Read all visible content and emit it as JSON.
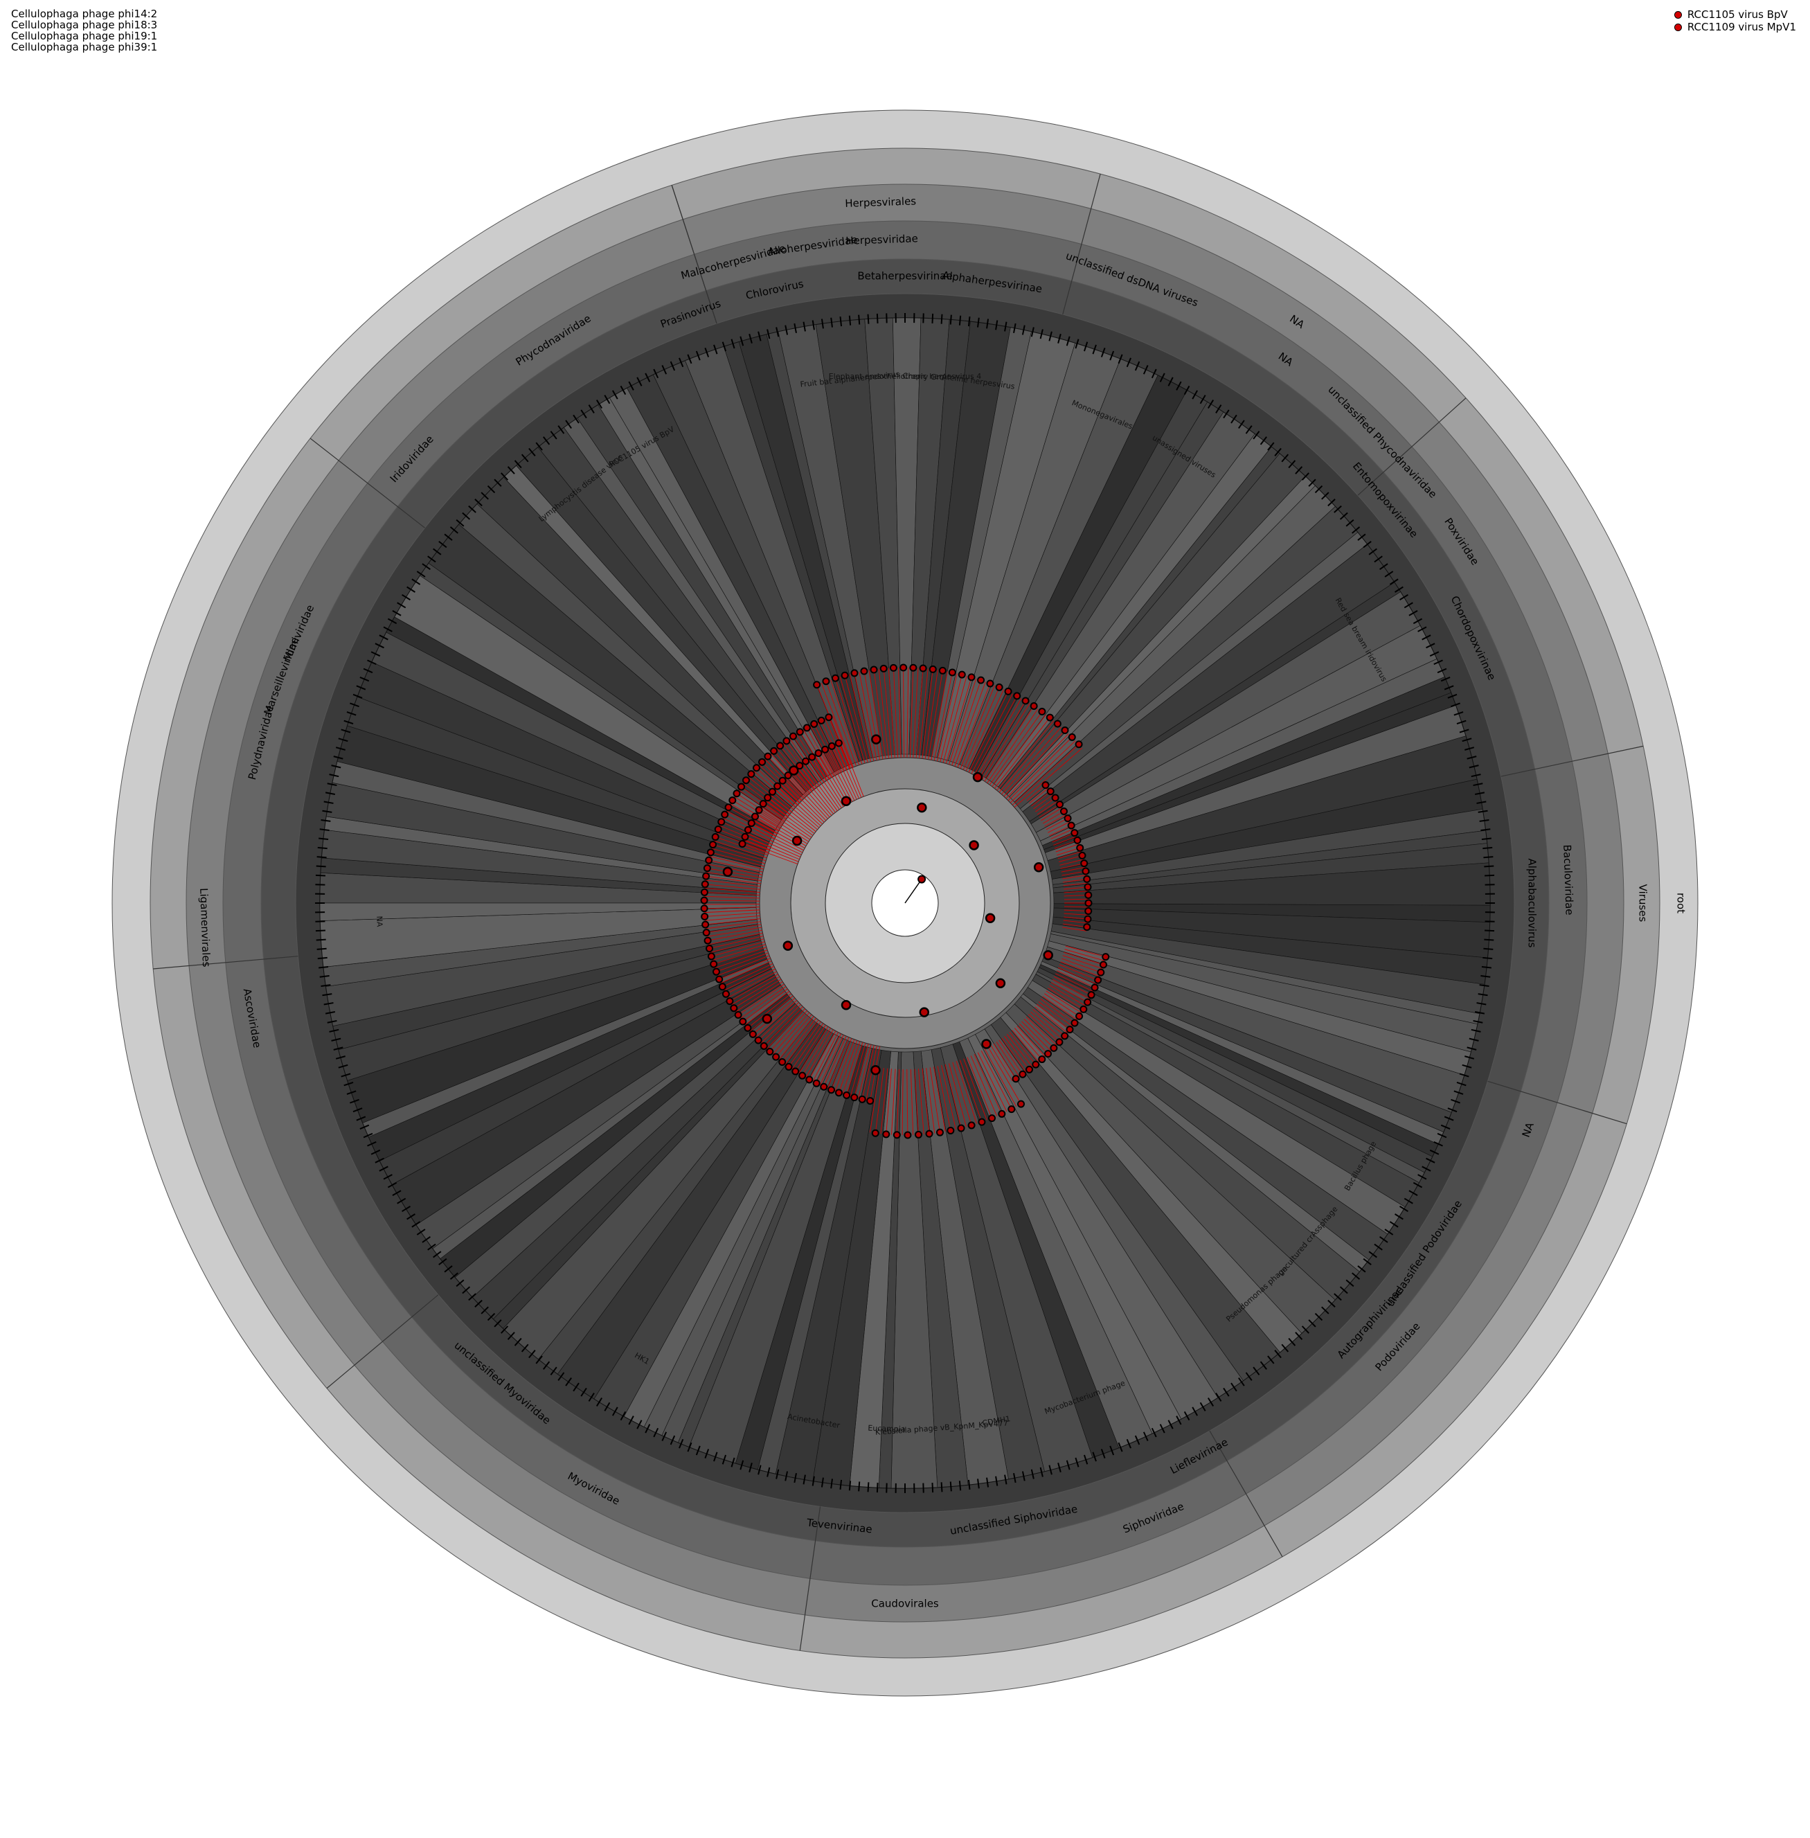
{
  "top_left_labels": [
    "Cellulophaga phage phi14:2",
    "Cellulophaga phage phi18:3",
    "Cellulophaga phage phi19:1",
    "Cellulophaga phage phi39:1"
  ],
  "legend": [
    {
      "label": "RCC1105 virus BpV",
      "color": "#d40000"
    },
    {
      "label": "RCC1109 virus MpV1",
      "color": "#d40000"
    }
  ],
  "colors": {
    "ring_fill_levels": [
      "#cccccc",
      "#a0a0a0",
      "#7f7f7f",
      "#666666",
      "#4d4d4d",
      "#3a3a3a"
    ],
    "edge_color": "#d40000",
    "node_color": "#000000",
    "node_fill": "#b00000"
  },
  "rank_labels": {
    "root": "root",
    "viruses": "Viruses",
    "na_order": "NA",
    "na_family": "NA",
    "na_lower": "NA"
  },
  "orders": [
    {
      "name": "Herpesvirales"
    },
    {
      "name": "NA"
    },
    {
      "name": "Caudovirales"
    },
    {
      "name": "Ligamenvirales"
    }
  ],
  "families": [
    {
      "name": "Herpesviridae"
    },
    {
      "name": "unclassified dsDNA viruses"
    },
    {
      "name": "NA"
    },
    {
      "name": "unclassified Phycodnaviridae"
    },
    {
      "name": "Poxviridae"
    },
    {
      "name": "Baculoviridae"
    },
    {
      "name": "NA"
    },
    {
      "name": "Podoviridae"
    },
    {
      "name": "Siphoviridae"
    },
    {
      "name": "Myoviridae"
    },
    {
      "name": "Ascoviridae"
    },
    {
      "name": "Polydnaviridae"
    },
    {
      "name": "Marseilleviridae"
    },
    {
      "name": "Mimiviridae"
    },
    {
      "name": "Iridoviridae"
    },
    {
      "name": "Phycodnaviridae"
    },
    {
      "name": "Malacoherpesviridae"
    },
    {
      "name": "Alloherpesviridae"
    }
  ],
  "subfamilies": [
    {
      "name": "Alphaherpesvirinae"
    },
    {
      "name": "Betaherpesvirinae"
    },
    {
      "name": "Chordopoxvirinae"
    },
    {
      "name": "Alphabaculovirus"
    },
    {
      "name": "Autographivirinae"
    },
    {
      "name": "unclassified Podoviridae"
    },
    {
      "name": "Lieflevirinae"
    },
    {
      "name": "unclassified Siphoviridae"
    },
    {
      "name": "Tevenvirinae"
    },
    {
      "name": "unclassified Myoviridae"
    },
    {
      "name": "Prasinovirus"
    },
    {
      "name": "Chlorovirus"
    },
    {
      "name": "Entomopoxvirinae"
    }
  ],
  "inner_labels": [
    {
      "name": "Fruit bat alphaherpesvirus"
    },
    {
      "name": "Elephant endotheliotropic herpesvirus 4"
    },
    {
      "name": "Ateline herpesvirus"
    },
    {
      "name": "Cherry Gro"
    },
    {
      "name": "Mononegavirales"
    },
    {
      "name": "unassigned viruses"
    },
    {
      "name": "Red sea bream iridovirus"
    },
    {
      "name": "Klebsiella phage vB_KpnM_KpV477"
    },
    {
      "name": "Acinetobacter"
    },
    {
      "name": "Lymphocystis disease virus"
    },
    {
      "name": "RCC1105 virus BpV"
    },
    {
      "name": "uncultured crAssphage"
    },
    {
      "name": "Mycobacterium phage"
    },
    {
      "name": "Pseudomonas phage"
    },
    {
      "name": "Bacillus phage"
    },
    {
      "name": "HK1"
    },
    {
      "name": "CDMH1"
    },
    {
      "name": "Eucampia"
    },
    {
      "name": "NA"
    }
  ]
}
